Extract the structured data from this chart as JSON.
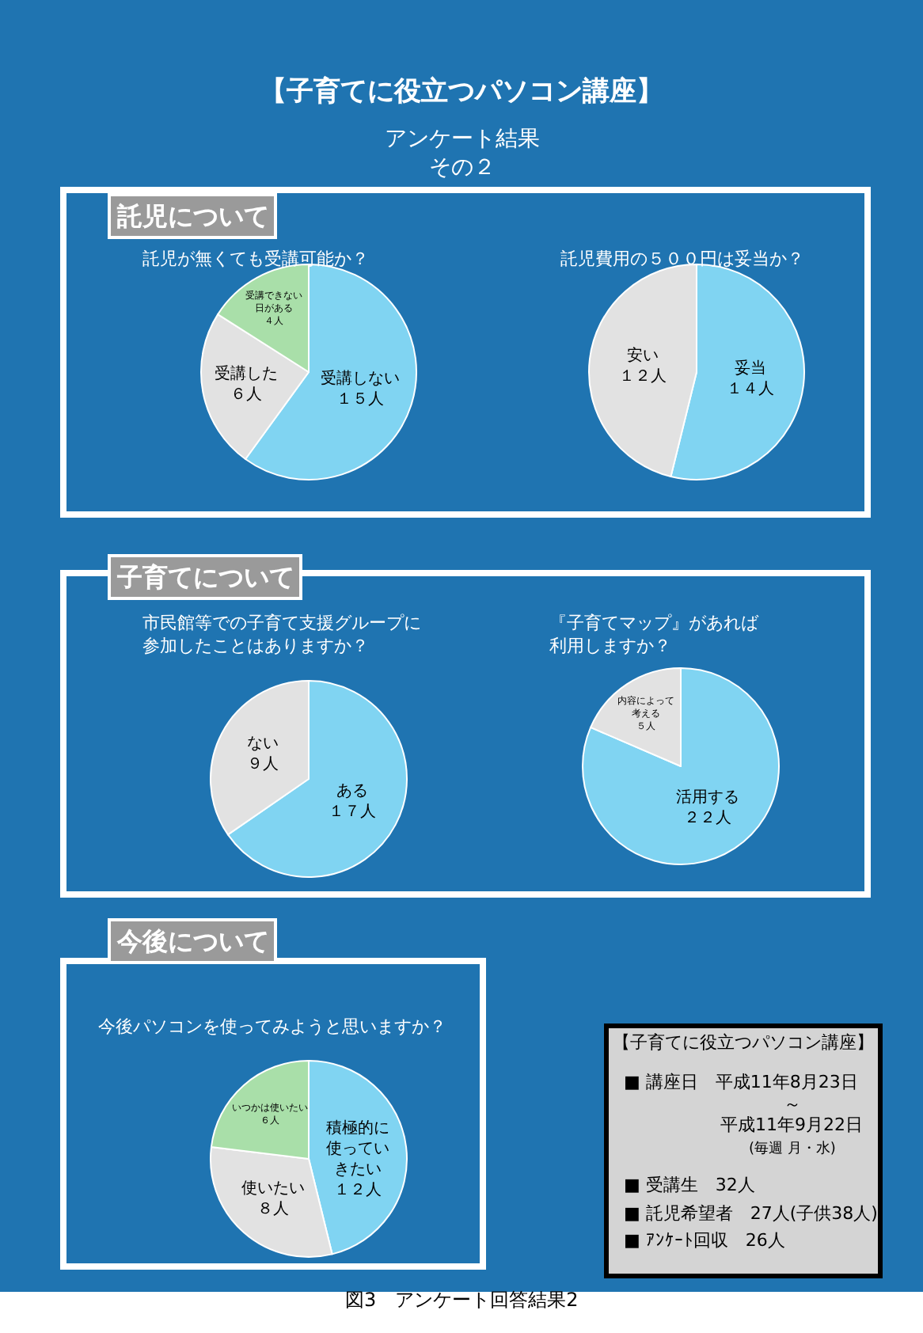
{
  "chart_data": [
    {
      "type": "other",
      "title": "【子育てに役立つパソコン講座】",
      "subtitle": "アンケート結果その２",
      "annotations": [
        "図3　アンケート回答結果2"
      ]
    },
    {
      "type": "pie",
      "title": "託児が無くても受講可能か？",
      "annotations": [
        "託児について"
      ],
      "categories": [
        "受講しない",
        "受講した",
        "受講できない日がある"
      ],
      "values": [
        15,
        6,
        4
      ],
      "value_labels": [
        "１５人",
        "６人",
        "４人"
      ],
      "colors": [
        "#80d4f2",
        "#e2e2e2",
        "#a9dfa9"
      ]
    },
    {
      "type": "pie",
      "title": "託児費用の５００円は妥当か？",
      "categories": [
        "妥当",
        "安い"
      ],
      "values": [
        14,
        12
      ],
      "value_labels": [
        "１４人",
        "１２人"
      ],
      "colors": [
        "#80d4f2",
        "#e2e2e2"
      ]
    },
    {
      "type": "pie",
      "title": "市民館等での子育て支援グループに参加したことはありますか？",
      "annotations": [
        "子育てについて"
      ],
      "categories": [
        "ある",
        "ない"
      ],
      "values": [
        17,
        9
      ],
      "value_labels": [
        "１７人",
        "９人"
      ],
      "colors": [
        "#80d4f2",
        "#e2e2e2"
      ]
    },
    {
      "type": "pie",
      "title": "『子育てマップ』があれば利用しますか？",
      "categories": [
        "活用する",
        "内容によって考える"
      ],
      "values": [
        22,
        5
      ],
      "value_labels": [
        "２２人",
        "５人"
      ],
      "colors": [
        "#80d4f2",
        "#e2e2e2"
      ]
    },
    {
      "type": "pie",
      "title": "今後パソコンを使ってみようと思いますか？",
      "annotations": [
        "今後について"
      ],
      "categories": [
        "積極的に使っていきたい",
        "使いたい",
        "いつかは使いたい"
      ],
      "values": [
        12,
        8,
        6
      ],
      "value_labels": [
        "１２人",
        "８人",
        "６人"
      ],
      "colors": [
        "#80d4f2",
        "#e2e2e2",
        "#a9dfa9"
      ]
    },
    {
      "type": "other",
      "annotations": [
        "【子育てに役立つパソコン講座】",
        "■ 講座日　平成11年8月23日",
        "～",
        "平成11年9月22日",
        "(毎週 月・水)",
        "■ 受講生　32人",
        "■ 託児希望者　27人(子供38人)",
        "■ ｱﾝｹｰﾄ回収　26人"
      ]
    }
  ]
}
